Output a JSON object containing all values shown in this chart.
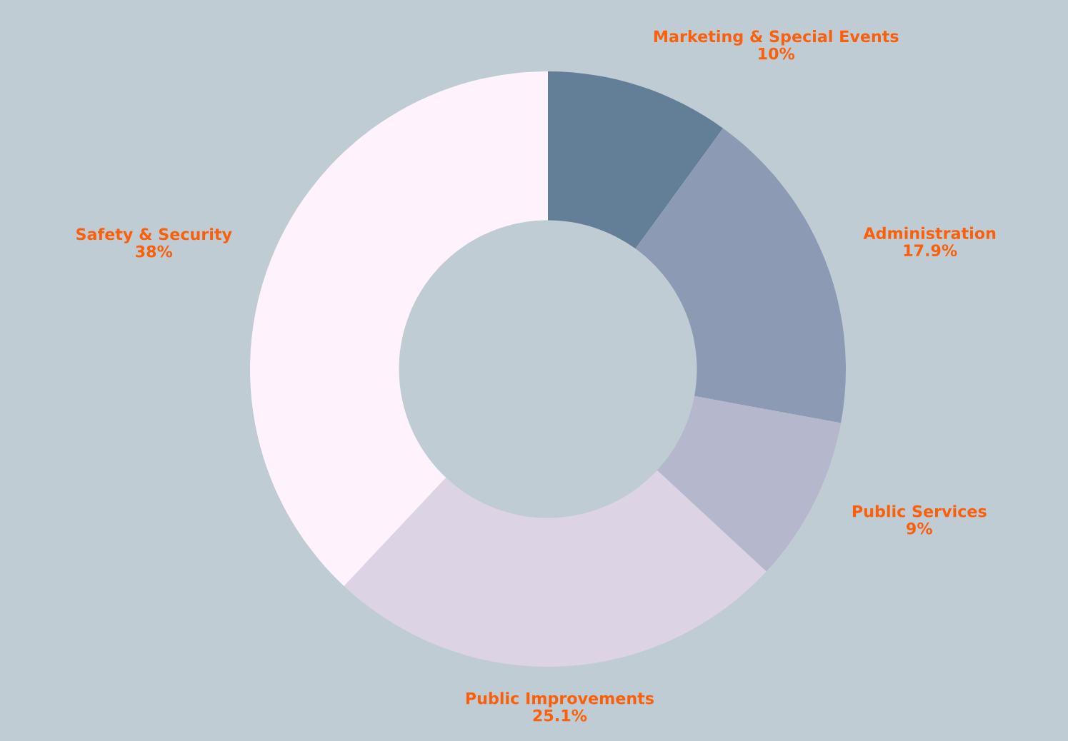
{
  "chart_data": {
    "type": "donut",
    "categories": [
      "Marketing & Special Events",
      "Administration",
      "Public Services",
      "Public Improvements",
      "Safety & Security"
    ],
    "values": [
      10,
      17.9,
      9,
      25.1,
      38
    ],
    "colors": [
      "#627f97",
      "#8c9ab3",
      "#b5b7cc",
      "#dcd3e5",
      "#fef3fd"
    ],
    "value_labels": [
      "10%",
      "17.9%",
      "9%",
      "25.1%",
      "38%"
    ],
    "legend": false
  }
}
